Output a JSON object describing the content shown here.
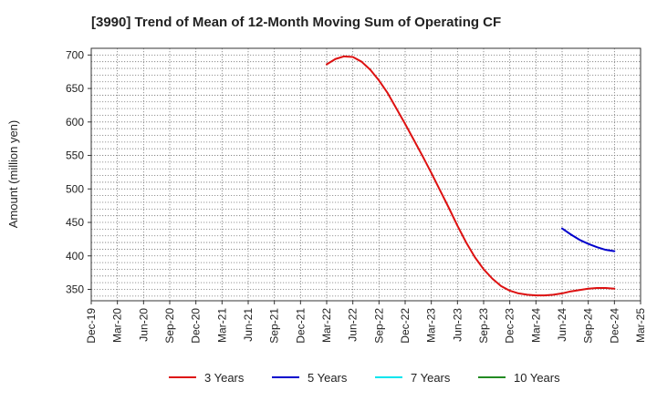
{
  "chart_data": {
    "type": "line",
    "title": "[3990]  Trend of Mean of 12-Month Moving Sum of Operating CF",
    "xlabel": "",
    "ylabel": "Amount (million yen)",
    "ylim": [
      333,
      710
    ],
    "yticks": [
      350,
      400,
      450,
      500,
      550,
      600,
      650,
      700
    ],
    "grid": true,
    "legend_position": "bottom",
    "categories": [
      "Dec-19",
      "Mar-20",
      "Jun-20",
      "Sep-20",
      "Dec-20",
      "Mar-21",
      "Jun-21",
      "Sep-21",
      "Dec-21",
      "Mar-22",
      "Jun-22",
      "Sep-22",
      "Dec-22",
      "Mar-23",
      "Jun-23",
      "Sep-23",
      "Dec-23",
      "Mar-24",
      "Jun-24",
      "Sep-24",
      "Dec-24",
      "Mar-25"
    ],
    "series": [
      {
        "name": "3 Years",
        "color": "#dd1111",
        "points": [
          [
            27,
            686
          ],
          [
            28,
            694
          ],
          [
            29,
            698
          ],
          [
            30,
            697
          ],
          [
            31,
            690
          ],
          [
            32,
            678
          ],
          [
            33,
            662
          ],
          [
            34,
            643
          ],
          [
            35,
            620
          ],
          [
            36,
            597
          ],
          [
            37,
            573
          ],
          [
            38,
            549
          ],
          [
            39,
            524
          ],
          [
            40,
            498
          ],
          [
            41,
            472
          ],
          [
            42,
            445
          ],
          [
            43,
            420
          ],
          [
            44,
            398
          ],
          [
            45,
            380
          ],
          [
            46,
            366
          ],
          [
            47,
            355
          ],
          [
            48,
            348
          ],
          [
            49,
            344
          ],
          [
            50,
            342
          ],
          [
            51,
            341
          ],
          [
            52,
            341
          ],
          [
            53,
            342
          ],
          [
            54,
            344
          ],
          [
            55,
            347
          ],
          [
            56,
            349
          ],
          [
            57,
            351
          ],
          [
            58,
            352
          ],
          [
            59,
            352
          ],
          [
            60,
            351
          ]
        ]
      },
      {
        "name": "5 Years",
        "color": "#0000cc",
        "points": [
          [
            54,
            441
          ],
          [
            55,
            432
          ],
          [
            56,
            424
          ],
          [
            57,
            418
          ],
          [
            58,
            413
          ],
          [
            59,
            409
          ],
          [
            60,
            407
          ]
        ]
      },
      {
        "name": "7 Years",
        "color": "#00e5ee",
        "points": []
      },
      {
        "name": "10 Years",
        "color": "#228b22",
        "points": []
      }
    ]
  }
}
